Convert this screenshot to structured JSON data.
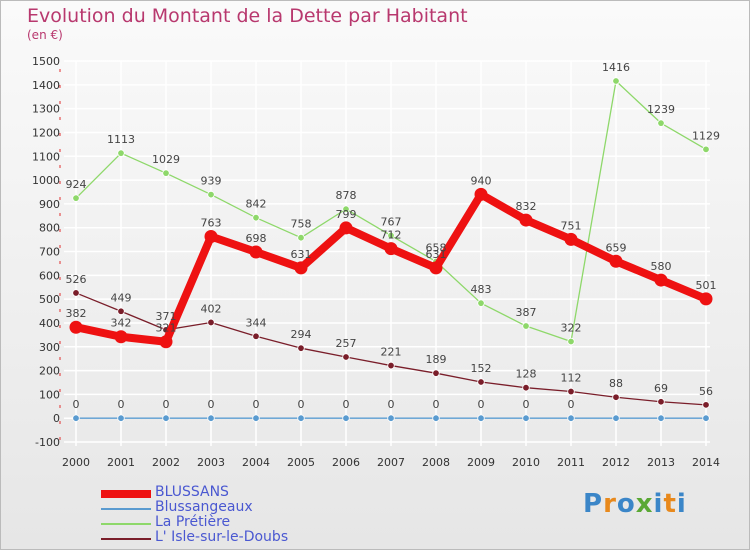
{
  "header": {
    "title": "Evolution du Montant de la Dette par Habitant",
    "unit": "(en €)"
  },
  "logo": {
    "text": "Proxiti",
    "colors": [
      "#3b86c8",
      "#e8891c",
      "#3b86c8",
      "#5aa834",
      "#3b86c8",
      "#e8891c",
      "#3b86c8"
    ]
  },
  "colors": {
    "title": "#b8386e",
    "legend_text": "#4a58d1",
    "axis_text": "#333333",
    "gridline": "#ffffff"
  },
  "chart_data": {
    "type": "line",
    "x": [
      "2000",
      "2001",
      "2002",
      "2003",
      "2004",
      "2005",
      "2006",
      "2007",
      "2008",
      "2009",
      "2010",
      "2011",
      "2012",
      "2013",
      "2014"
    ],
    "ylim": [
      -100,
      1500
    ],
    "yticks": [
      -100,
      0,
      100,
      200,
      300,
      400,
      500,
      600,
      700,
      800,
      900,
      1000,
      1100,
      1200,
      1300,
      1400,
      1500
    ],
    "grid": true,
    "legend_position": "bottom-left",
    "series": [
      {
        "name": "BLUSSANS",
        "color": "#ee1111",
        "width": 8,
        "values": [
          382,
          342,
          321,
          763,
          698,
          631,
          799,
          712,
          631,
          940,
          832,
          751,
          659,
          580,
          501
        ],
        "labels": [
          "382",
          "342",
          "321",
          "763",
          "698",
          "631",
          "799",
          "712",
          "631",
          "940",
          "832",
          "751",
          "659",
          "580",
          "501"
        ]
      },
      {
        "name": "Blussangeaux",
        "color": "#5a9bd0",
        "width": 1.3,
        "values": [
          0,
          0,
          0,
          0,
          0,
          0,
          0,
          0,
          0,
          0,
          0,
          0,
          0,
          0,
          0
        ],
        "labels": [
          "0",
          "0",
          "0",
          "0",
          "0",
          "0",
          "0",
          "0",
          "0",
          "0",
          "0",
          "0",
          "",
          "",
          ""
        ]
      },
      {
        "name": "La Prétière",
        "color": "#8ed86a",
        "width": 1.3,
        "values": [
          924,
          1113,
          1029,
          939,
          842,
          758,
          878,
          767,
          658,
          483,
          387,
          322,
          1416,
          1239,
          1129
        ],
        "labels": [
          "924",
          "1113",
          "1029",
          "939",
          "842",
          "758",
          "878",
          "767",
          "658",
          "483",
          "387",
          "322",
          "1416",
          "1239",
          "1129"
        ]
      },
      {
        "name": "L' Isle-sur-le-Doubs",
        "color": "#7a1e2a",
        "width": 1.3,
        "values": [
          526,
          449,
          371,
          402,
          344,
          294,
          257,
          221,
          189,
          152,
          128,
          112,
          88,
          69,
          56
        ],
        "labels": [
          "526",
          "449",
          "371",
          "402",
          "344",
          "294",
          "257",
          "221",
          "189",
          "152",
          "128",
          "112",
          "88",
          "69",
          "56"
        ]
      }
    ]
  }
}
